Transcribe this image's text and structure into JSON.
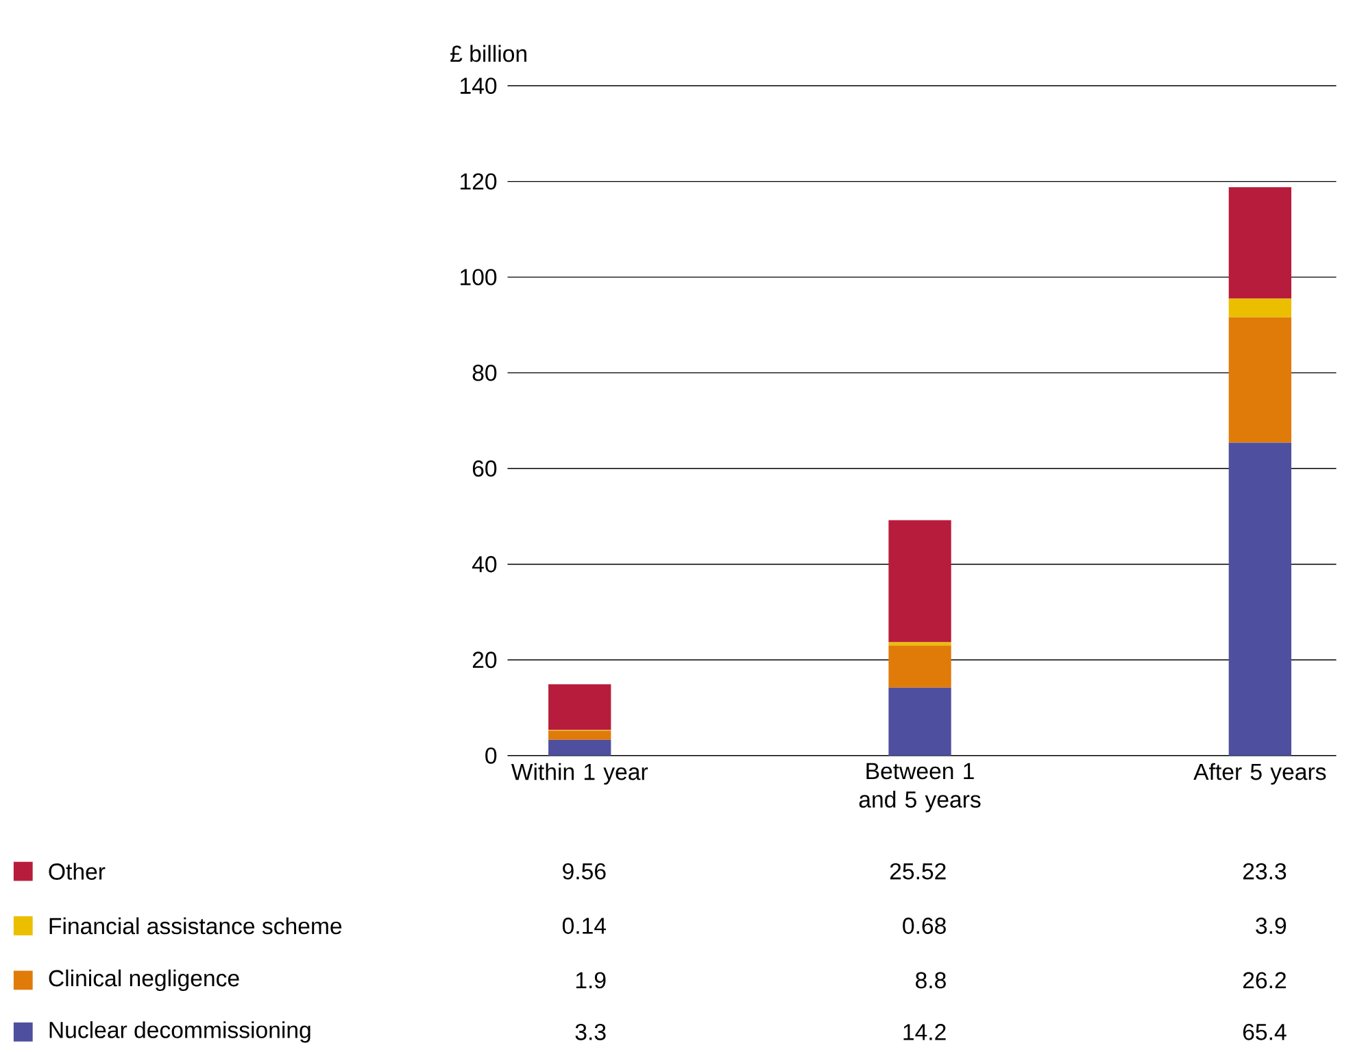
{
  "chart_data": {
    "type": "bar",
    "stacked": true,
    "ylabel": "£ billion",
    "categories": [
      "Within 1 year",
      "Between 1 and 5 years",
      "After 5 years"
    ],
    "series": [
      {
        "name": "Nuclear decommissioning",
        "color": "#4f4f9f",
        "values": [
          3.3,
          14.2,
          65.4
        ]
      },
      {
        "name": "Clinical negligence",
        "color": "#e07b0a",
        "values": [
          1.9,
          8.8,
          26.2
        ]
      },
      {
        "name": "Financial assistance scheme",
        "color": "#ebbf00",
        "values": [
          0.14,
          0.68,
          3.9
        ]
      },
      {
        "name": "Other",
        "color": "#b81c3c",
        "values": [
          9.56,
          25.52,
          23.3
        ]
      }
    ],
    "ylim": [
      0,
      140
    ],
    "yticks": [
      0,
      20,
      40,
      60,
      80,
      100,
      120,
      140
    ],
    "grid": "y",
    "legend": "bottom left",
    "data_labels": true
  }
}
